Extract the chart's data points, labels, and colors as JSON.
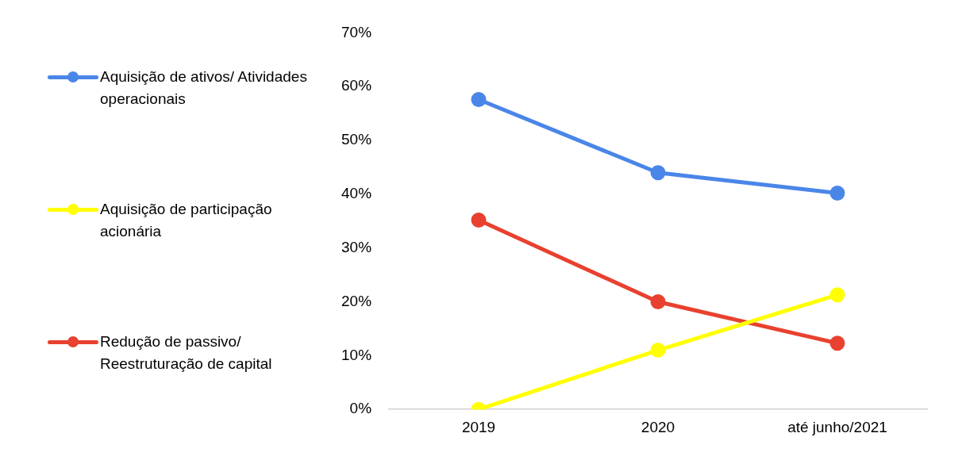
{
  "chart_data": {
    "type": "line",
    "categories": [
      "2019",
      "2020",
      "até junho/2021"
    ],
    "series": [
      {
        "name": "Aquisição de ativos/ Atividades operacionais",
        "color": "#4a86e8",
        "values": [
          57.6,
          44,
          40.2
        ]
      },
      {
        "name": "Aquisição de participação acionária",
        "color": "#ffff00",
        "values": [
          0,
          11,
          21.3
        ]
      },
      {
        "name": "Redução de passivo/ Reestruturação de capital",
        "color": "#e8412f",
        "values": [
          35.2,
          20,
          12.3
        ]
      }
    ],
    "ylim": [
      0,
      70
    ],
    "yticks": [
      {
        "value": 0,
        "label": "0%"
      },
      {
        "value": 10,
        "label": "10%"
      },
      {
        "value": 20,
        "label": "20%"
      },
      {
        "value": 30,
        "label": "30%"
      },
      {
        "value": 40,
        "label": "40%"
      },
      {
        "value": 50,
        "label": "50%"
      },
      {
        "value": 60,
        "label": "60%"
      },
      {
        "value": 70,
        "label": "70%"
      }
    ],
    "grid": false,
    "legend": "left",
    "marker": "circle",
    "line_style": "solid"
  }
}
